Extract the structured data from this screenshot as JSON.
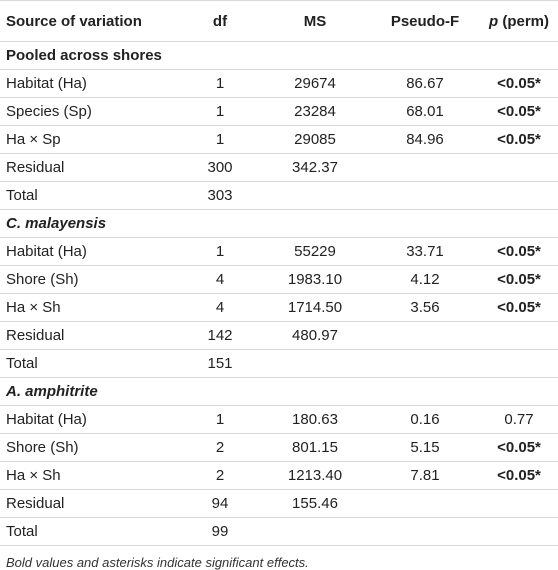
{
  "header": [
    "Source of variation",
    "df",
    "MS",
    "Pseudo-F",
    "p (perm)"
  ],
  "sections": [
    {
      "title": "Pooled across shores",
      "italic": false,
      "rows": [
        {
          "source": "Habitat (Ha)",
          "df": "1",
          "ms": "29674",
          "f": "86.67",
          "p": "<0.05*",
          "sig": true
        },
        {
          "source": "Species (Sp)",
          "df": "1",
          "ms": "23284",
          "f": "68.01",
          "p": "<0.05*",
          "sig": true
        },
        {
          "source": "Ha × Sp",
          "df": "1",
          "ms": "29085",
          "f": "84.96",
          "p": "<0.05*",
          "sig": true
        },
        {
          "source": "Residual",
          "df": "300",
          "ms": "342.37",
          "f": "",
          "p": "",
          "sig": false
        },
        {
          "source": "Total",
          "df": "303",
          "ms": "",
          "f": "",
          "p": "",
          "sig": false
        }
      ]
    },
    {
      "title": "C. malayensis",
      "italic": true,
      "rows": [
        {
          "source": "Habitat (Ha)",
          "df": "1",
          "ms": "55229",
          "f": "33.71",
          "p": "<0.05*",
          "sig": true
        },
        {
          "source": "Shore (Sh)",
          "df": "4",
          "ms": "1983.10",
          "f": "4.12",
          "p": "<0.05*",
          "sig": true
        },
        {
          "source": "Ha × Sh",
          "df": "4",
          "ms": "1714.50",
          "f": "3.56",
          "p": "<0.05*",
          "sig": true
        },
        {
          "source": "Residual",
          "df": "142",
          "ms": "480.97",
          "f": "",
          "p": "",
          "sig": false
        },
        {
          "source": "Total",
          "df": "151",
          "ms": "",
          "f": "",
          "p": "",
          "sig": false
        }
      ]
    },
    {
      "title": "A. amphitrite",
      "italic": true,
      "rows": [
        {
          "source": "Habitat (Ha)",
          "df": "1",
          "ms": "180.63",
          "f": "0.16",
          "p": "0.77",
          "sig": false
        },
        {
          "source": "Shore (Sh)",
          "df": "2",
          "ms": "801.15",
          "f": "5.15",
          "p": "<0.05*",
          "sig": true
        },
        {
          "source": "Ha × Sh",
          "df": "2",
          "ms": "1213.40",
          "f": "7.81",
          "p": "<0.05*",
          "sig": true
        },
        {
          "source": "Residual",
          "df": "94",
          "ms": "155.46",
          "f": "",
          "p": "",
          "sig": false
        },
        {
          "source": "Total",
          "df": "99",
          "ms": "",
          "f": "",
          "p": "",
          "sig": false
        }
      ]
    }
  ],
  "footnote": "Bold values and asterisks indicate significant effects."
}
